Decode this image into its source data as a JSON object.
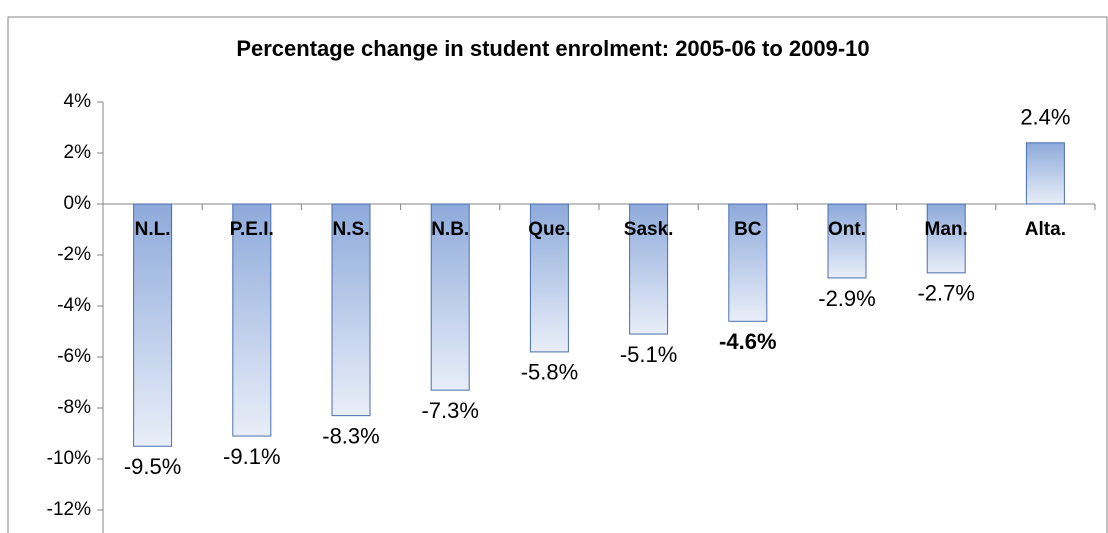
{
  "chart_data": {
    "type": "bar",
    "title": "Percentage change in student enrolment: 2005-06 to 2009-10",
    "categories": [
      "N.L.",
      "P.E.I.",
      "N.S.",
      "N.B.",
      "Que.",
      "Sask.",
      "BC",
      "Ont.",
      "Man.",
      "Alta."
    ],
    "values": [
      -9.5,
      -9.1,
      -8.3,
      -7.3,
      -5.8,
      -5.1,
      -4.6,
      -2.9,
      -2.7,
      2.4
    ],
    "value_labels": [
      "-9.5%",
      "-9.1%",
      "-8.3%",
      "-7.3%",
      "-5.8%",
      "-5.1%",
      "-4.6%",
      "-2.9%",
      "-2.7%",
      "2.4%"
    ],
    "highlight_category": "BC",
    "color": "#8eaadb",
    "ylim": [
      -12,
      4
    ],
    "yticks": [
      {
        "value": -12,
        "label": "-12%"
      },
      {
        "value": -10,
        "label": "-10%"
      },
      {
        "value": -8,
        "label": "-8%"
      },
      {
        "value": -6,
        "label": "-6%"
      },
      {
        "value": -4,
        "label": "-4%"
      },
      {
        "value": -2,
        "label": "-2%"
      },
      {
        "value": 0,
        "label": "0%"
      },
      {
        "value": 2,
        "label": "2%"
      },
      {
        "value": 4,
        "label": "4%"
      }
    ],
    "grid": false
  }
}
